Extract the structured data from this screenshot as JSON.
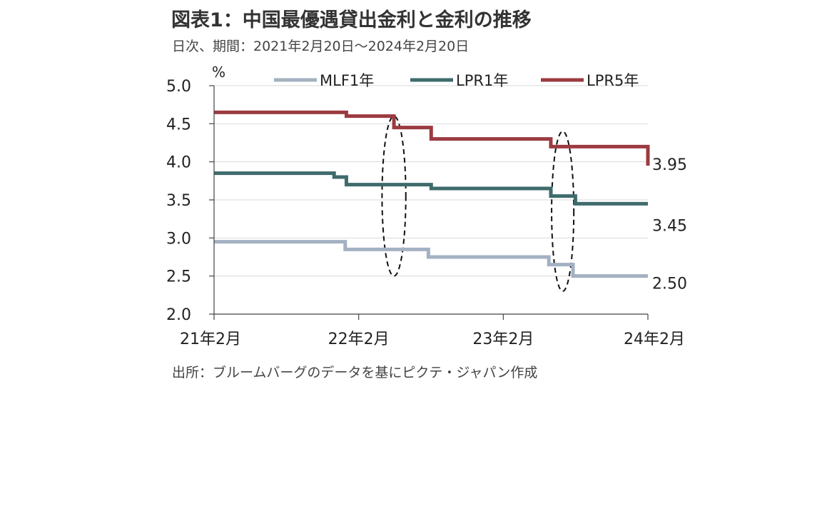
{
  "title": "図表1：中国最優遇貸出金利と金利の推移",
  "subtitle": "日次、期間：2021年2月20日～2024年2月20日",
  "source": "出所：ブルームバーグのデータを基にピクテ・ジャパン作成",
  "chart_data": {
    "type": "line",
    "step": true,
    "yunit": "%",
    "ylim": [
      2.0,
      5.0
    ],
    "yticks": [
      "5.0",
      "4.5",
      "4.0",
      "3.5",
      "3.0",
      "2.5",
      "2.0"
    ],
    "xlim": [
      "2021-02-20",
      "2024-02-20"
    ],
    "xticks": [
      {
        "date": "2021-02-20",
        "label": "21年2月"
      },
      {
        "date": "2022-02-20",
        "label": "22年2月"
      },
      {
        "date": "2023-02-20",
        "label": "23年2月"
      },
      {
        "date": "2024-02-20",
        "label": "24年2月"
      }
    ],
    "legend_position": "top",
    "series": [
      {
        "name": "MLF1年",
        "color": "#a3b1c2",
        "points": [
          {
            "date": "2021-02-20",
            "value": 2.95
          },
          {
            "date": "2022-01-17",
            "value": 2.85
          },
          {
            "date": "2022-08-15",
            "value": 2.75
          },
          {
            "date": "2023-06-15",
            "value": 2.65
          },
          {
            "date": "2023-08-15",
            "value": 2.5
          },
          {
            "date": "2024-02-20",
            "value": 2.5
          }
        ],
        "last_label": "2.50"
      },
      {
        "name": "LPR1年",
        "color": "#3f6b6c",
        "points": [
          {
            "date": "2021-02-20",
            "value": 3.85
          },
          {
            "date": "2021-12-20",
            "value": 3.8
          },
          {
            "date": "2022-01-20",
            "value": 3.7
          },
          {
            "date": "2022-08-22",
            "value": 3.65
          },
          {
            "date": "2023-06-20",
            "value": 3.55
          },
          {
            "date": "2023-08-21",
            "value": 3.45
          },
          {
            "date": "2024-02-20",
            "value": 3.45
          }
        ],
        "last_label": "3.45"
      },
      {
        "name": "LPR5年",
        "color": "#9b3b40",
        "points": [
          {
            "date": "2021-02-20",
            "value": 4.65
          },
          {
            "date": "2022-01-20",
            "value": 4.6
          },
          {
            "date": "2022-05-20",
            "value": 4.45
          },
          {
            "date": "2022-08-22",
            "value": 4.3
          },
          {
            "date": "2023-06-20",
            "value": 4.2
          },
          {
            "date": "2024-02-20",
            "value": 4.2
          },
          {
            "date": "2024-02-20",
            "value": 3.95
          }
        ],
        "last_label": "3.95"
      }
    ],
    "annotations": [
      {
        "type": "ellipse",
        "center_date": "2022-05-20",
        "center_value": 3.55,
        "half_span_days": 30,
        "half_span_value": 1.05
      },
      {
        "type": "ellipse",
        "center_date": "2023-07-20",
        "center_value": 3.35,
        "half_span_days": 28,
        "half_span_value": 1.05
      }
    ]
  }
}
